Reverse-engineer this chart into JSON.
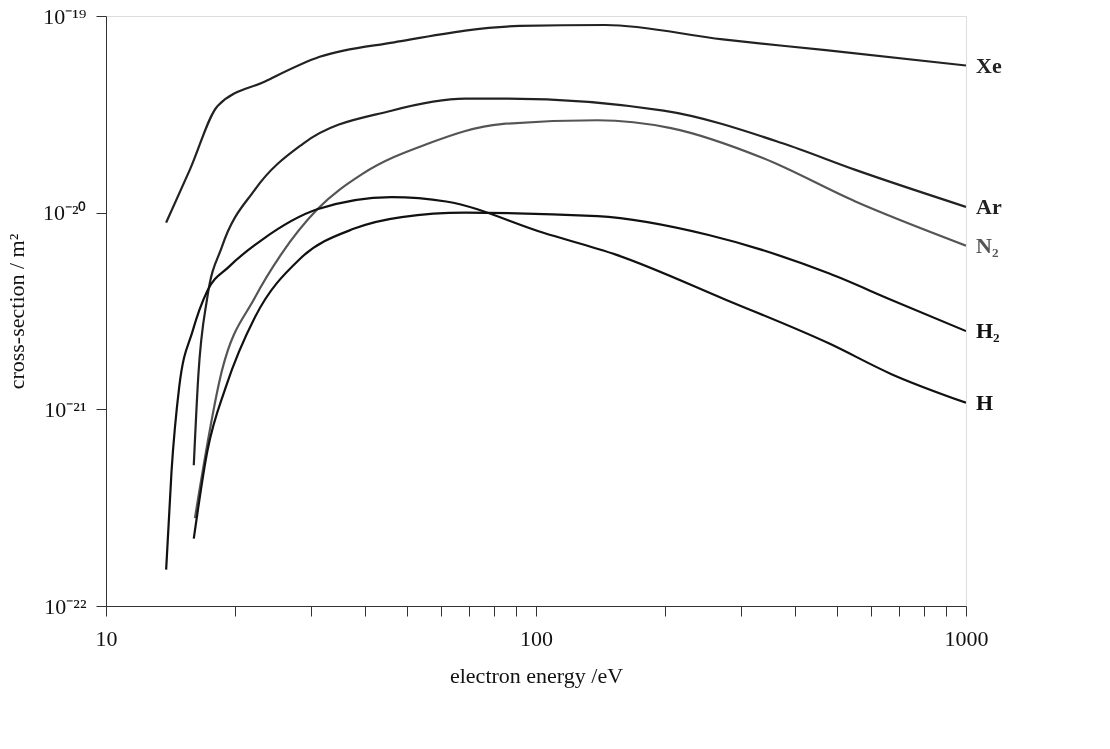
{
  "chart_data": {
    "type": "line",
    "xlabel": "electron energy /eV",
    "ylabel": "cross-section / m²",
    "log": "xy",
    "grid": false,
    "legend": false,
    "line_style": "solid",
    "marker": "none",
    "xlim": [
      10,
      1000
    ],
    "ylim": [
      1e-22,
      1e-19
    ],
    "xticks": [
      10,
      {
        "value": 20,
        "label": null
      },
      {
        "value": 30,
        "label": null
      },
      {
        "value": 40,
        "label": null
      },
      {
        "value": 50,
        "label": null
      },
      {
        "value": 60,
        "label": null
      },
      {
        "value": 70,
        "label": null
      },
      {
        "value": 80,
        "label": null
      },
      {
        "value": 90,
        "label": null
      },
      100,
      {
        "value": 200,
        "label": null
      },
      {
        "value": 300,
        "label": null
      },
      {
        "value": 400,
        "label": null
      },
      {
        "value": 500,
        "label": null
      },
      {
        "value": 600,
        "label": null
      },
      {
        "value": 700,
        "label": null
      },
      {
        "value": 800,
        "label": null
      },
      {
        "value": 900,
        "label": null
      },
      1000
    ],
    "yticks": [
      {
        "value": 1e-22,
        "label": "10⁻²²"
      },
      {
        "value": 1e-21,
        "label": "10⁻²¹"
      },
      {
        "value": 1e-20,
        "label": "10⁻²⁰"
      },
      {
        "value": 1e-19,
        "label": "10⁻¹⁹"
      }
    ],
    "series": [
      {
        "name": "Xe",
        "color": "#222222",
        "x": [
          13.8,
          15.7,
          18.2,
          23.5,
          31.4,
          46.8,
          91.6,
          145,
          272,
          472,
          1000
        ],
        "values": [
          8.9e-21,
          1.67e-20,
          3.5e-20,
          4.66e-20,
          6.2e-20,
          7.35e-20,
          8.9e-20,
          9e-20,
          7.6e-20,
          6.7e-20,
          5.6e-20
        ]
      },
      {
        "name": "Ar",
        "color": "#222222",
        "x": [
          16.0,
          16.4,
          17.2,
          18.6,
          22.2,
          28.7,
          46.1,
          68.4,
          84.9,
          198,
          373,
          553,
          1000
        ],
        "values": [
          5.2e-22,
          1.5e-21,
          3.7e-21,
          6.7e-21,
          1.31e-20,
          2.24e-20,
          3.3e-20,
          3.8e-20,
          3.8e-20,
          3.3e-20,
          2.26e-20,
          1.65e-20,
          1.07e-20
        ]
      },
      {
        "name": "N₂",
        "color": "#555555",
        "x": [
          16.1,
          18.6,
          22.2,
          25.5,
          31.0,
          39.4,
          56.0,
          83.0,
          139,
          206,
          338,
          553,
          1000
        ],
        "values": [
          2.8e-22,
          1.57e-21,
          3.7e-21,
          6.1e-21,
          1.04e-20,
          1.57e-20,
          2.24e-20,
          2.82e-20,
          2.95e-20,
          2.69e-20,
          1.89e-20,
          1.14e-20,
          6.8e-21
        ]
      },
      {
        "name": "H₂",
        "color": "#111111",
        "x": [
          16.0,
          17.2,
          19.0,
          22.2,
          28.2,
          37.8,
          48.7,
          68.4,
          139,
          252,
          481,
          671,
          1000
        ],
        "values": [
          2.2e-22,
          6.1e-22,
          1.3e-21,
          2.94e-21,
          5.8e-21,
          8.3e-21,
          9.5e-21,
          1e-20,
          9.6e-21,
          7.7e-21,
          4.9e-21,
          3.6e-21,
          2.5e-21
        ]
      },
      {
        "name": "H",
        "color": "#111111",
        "x": [
          13.8,
          14.2,
          14.8,
          15.9,
          17.2,
          19.3,
          23.1,
          31.0,
          46.1,
          61.8,
          104,
          154,
          277,
          481,
          671,
          1000
        ],
        "values": [
          1.53e-22,
          4.8e-22,
          1.3e-21,
          2.5e-21,
          4e-21,
          5.3e-21,
          7.3e-21,
          1.04e-20,
          1.2e-20,
          1.14e-20,
          7.9e-21,
          6.1e-21,
          3.6e-21,
          2.16e-21,
          1.51e-21,
          1.08e-21
        ]
      }
    ]
  }
}
